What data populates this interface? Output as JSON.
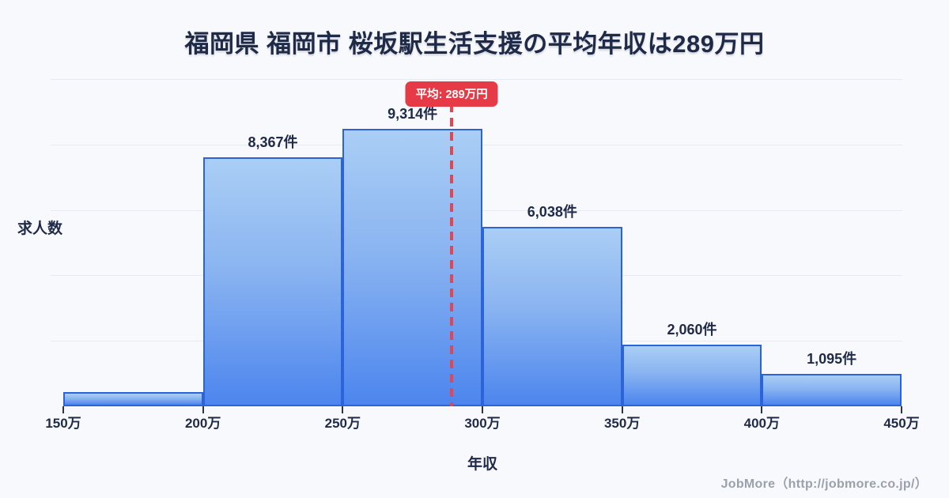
{
  "title": "福岡県 福岡市 桜坂駅生活支援の平均年収は289万円",
  "average": {
    "badge_label": "平均: 289万円",
    "value_man_yen": 289
  },
  "footer": {
    "credit": "JobMore（http://jobmore.co.jp/）"
  },
  "chart_data": {
    "type": "bar",
    "subtype": "histogram",
    "title": "福岡県 福岡市 桜坂駅生活支援の平均年収は289万円",
    "xlabel": "年収",
    "ylabel": "求人数",
    "x_tick_labels": [
      "150万",
      "200万",
      "250万",
      "300万",
      "350万",
      "400万",
      "450万"
    ],
    "bin_edges_man_yen": [
      150,
      200,
      250,
      300,
      350,
      400,
      450
    ],
    "series": [
      {
        "name": "求人数",
        "values": [
          480,
          8367,
          9314,
          6038,
          2060,
          1095
        ]
      }
    ],
    "bar_value_labels": [
      "",
      "8,367件",
      "9,314件",
      "6,038件",
      "2,060件",
      "1,095件"
    ],
    "first_bar_label_visible": false,
    "first_bar_value_estimated": true,
    "ylim": [
      0,
      11000
    ],
    "y_ticks_labeled": false,
    "grid": "horizontal",
    "gridline_count": 5,
    "legend": "none",
    "average_line": {
      "x_man_yen": 289,
      "label": "平均: 289万円",
      "style": "dashed"
    },
    "colors": {
      "background": "#f8f9fc",
      "bar_fill_top": "#aacef5",
      "bar_fill_bottom": "#4c85ee",
      "bar_border": "#2b63db",
      "average_red": "#e63b47",
      "text_dark": "#1e2a47",
      "gridline": "#e6eaf2",
      "footer_gray": "#9aa1ac"
    }
  }
}
